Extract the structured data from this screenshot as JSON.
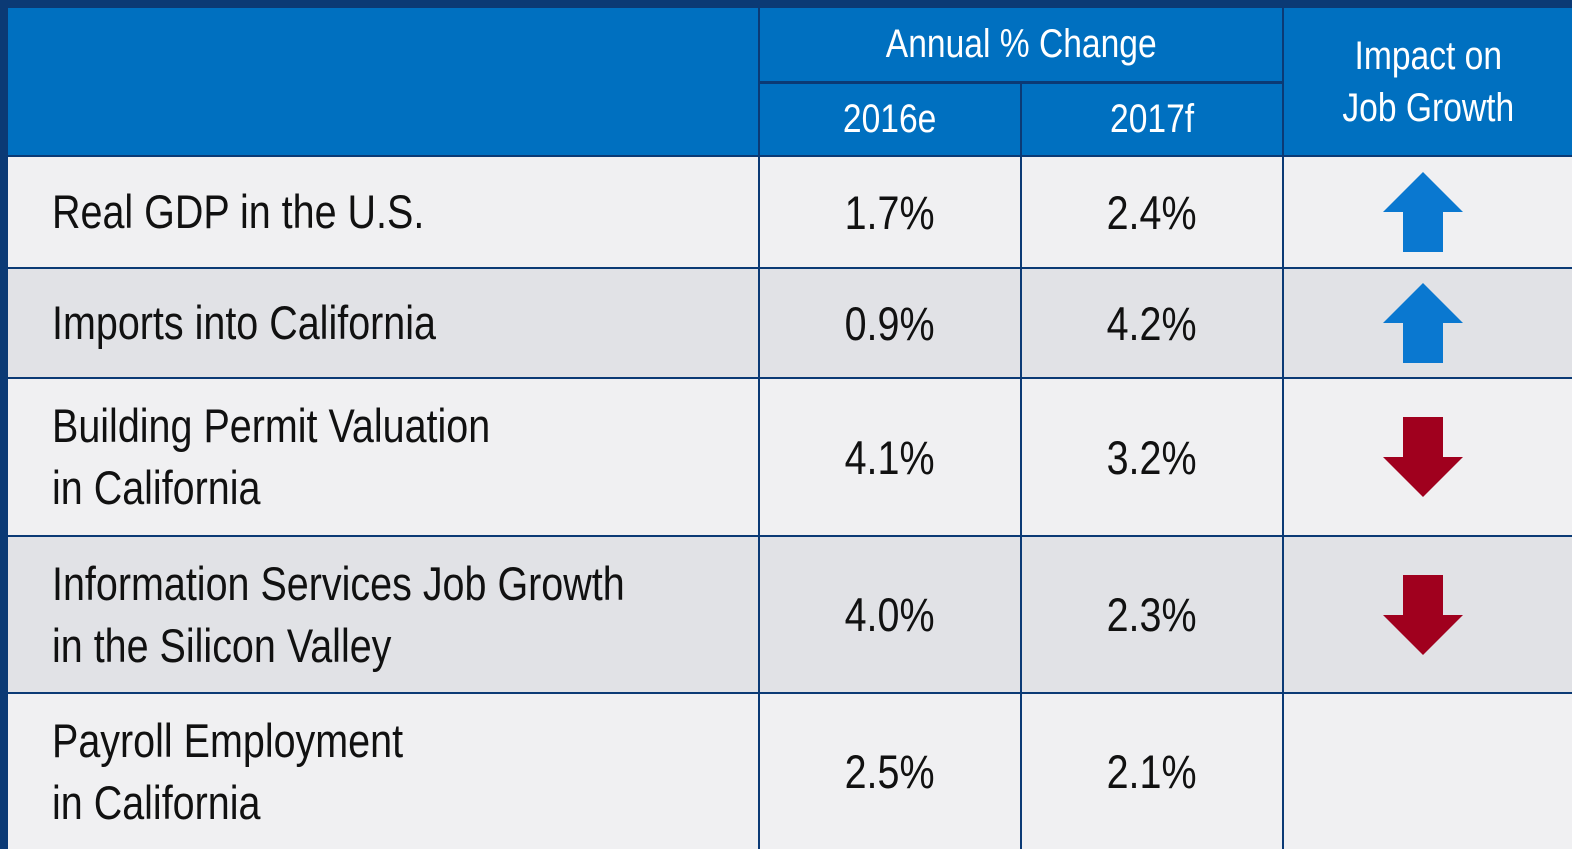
{
  "table": {
    "header": {
      "group": "Annual % Change",
      "years": [
        "2016e",
        "2017f"
      ],
      "impact": [
        "Impact on",
        "Job Growth"
      ]
    },
    "rows": [
      {
        "label": [
          "Real GDP in the U.S."
        ],
        "values": [
          "1.7%",
          "2.4%"
        ],
        "impact": "up"
      },
      {
        "label": [
          "Imports into California"
        ],
        "values": [
          "0.9%",
          "4.2%"
        ],
        "impact": "up"
      },
      {
        "label": [
          "Building Permit Valuation",
          "in California"
        ],
        "values": [
          "4.1%",
          "3.2%"
        ],
        "impact": "down"
      },
      {
        "label": [
          "Information Services Job Growth",
          "in the Silicon Valley"
        ],
        "values": [
          "4.0%",
          "2.3%"
        ],
        "impact": "down"
      },
      {
        "label": [
          "Payroll Employment",
          "in California"
        ],
        "values": [
          "2.5%",
          "2.1%"
        ]
      }
    ]
  }
}
